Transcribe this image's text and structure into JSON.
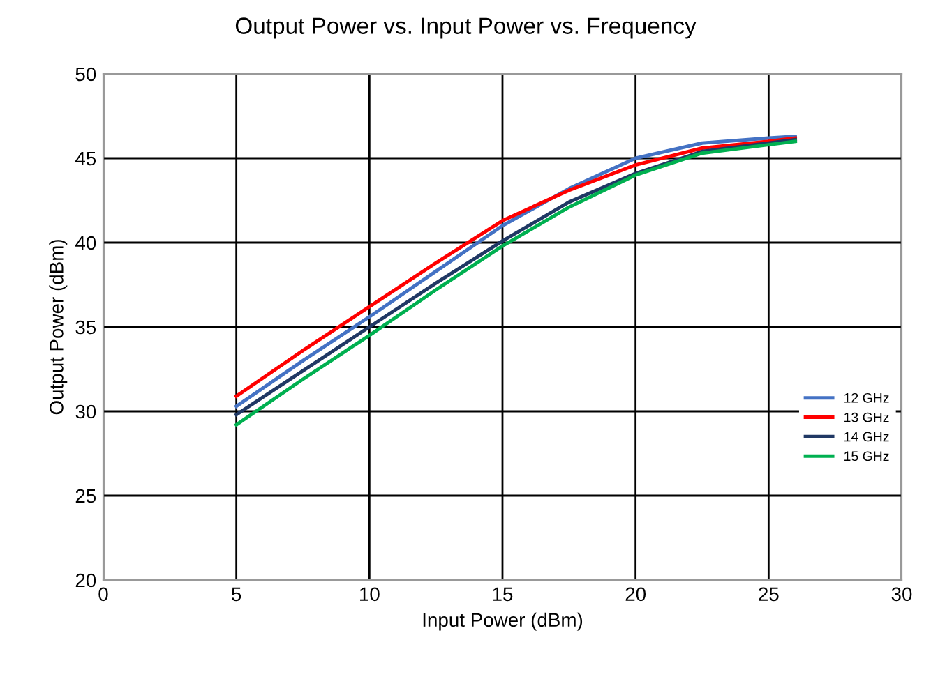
{
  "chart_data": {
    "type": "line",
    "title": "Output Power vs. Input Power vs. Frequency",
    "xlabel": "Input Power (dBm)",
    "ylabel": "Output Power (dBm)",
    "xlim": [
      0,
      30
    ],
    "xticks": [
      0,
      5,
      10,
      15,
      20,
      25,
      30
    ],
    "ylim": [
      20,
      50
    ],
    "yticks": [
      20,
      25,
      30,
      35,
      40,
      45,
      50
    ],
    "grid": true,
    "legend": "right",
    "marker": "none",
    "series": [
      {
        "name": "12 GHz",
        "color": "#4472c4",
        "x": [
          5,
          7.5,
          10,
          12.5,
          15,
          17.5,
          20,
          22.5,
          25,
          26
        ],
        "values": [
          30.3,
          33.0,
          35.6,
          38.3,
          41.0,
          43.2,
          45.0,
          45.9,
          46.2,
          46.3
        ]
      },
      {
        "name": "13 GHz",
        "color": "#ff0000",
        "x": [
          5,
          7.5,
          10,
          12.5,
          15,
          17.5,
          20,
          22.5,
          25,
          26
        ],
        "values": [
          30.9,
          33.6,
          36.2,
          38.8,
          41.3,
          43.1,
          44.6,
          45.6,
          46.0,
          46.2
        ]
      },
      {
        "name": "14 GHz",
        "color": "#203864",
        "x": [
          5,
          7.5,
          10,
          12.5,
          15,
          17.5,
          20,
          22.5,
          25,
          26
        ],
        "values": [
          29.8,
          32.4,
          35.0,
          37.6,
          40.1,
          42.4,
          44.1,
          45.4,
          45.9,
          46.1
        ]
      },
      {
        "name": "15 GHz",
        "color": "#00b050",
        "x": [
          5,
          7.5,
          10,
          12.5,
          15,
          17.5,
          20,
          22.5,
          25,
          26
        ],
        "values": [
          29.2,
          31.9,
          34.5,
          37.2,
          39.8,
          42.1,
          44.0,
          45.3,
          45.8,
          46.0
        ]
      }
    ]
  }
}
